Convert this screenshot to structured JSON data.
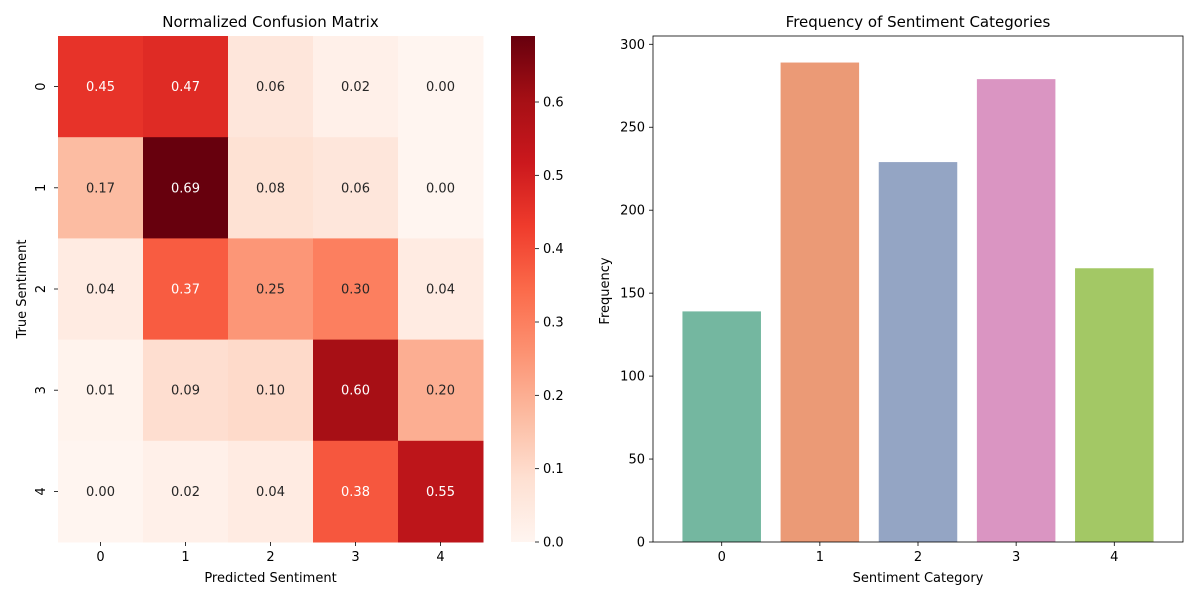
{
  "chart_data": [
    {
      "type": "heatmap",
      "title": "Normalized Confusion Matrix",
      "xlabel": "Predicted Sentiment",
      "ylabel": "True Sentiment",
      "x_categories": [
        "0",
        "1",
        "2",
        "3",
        "4"
      ],
      "y_categories": [
        "0",
        "1",
        "2",
        "3",
        "4"
      ],
      "values": [
        [
          0.45,
          0.47,
          0.06,
          0.02,
          0.0
        ],
        [
          0.17,
          0.69,
          0.08,
          0.06,
          0.0
        ],
        [
          0.04,
          0.37,
          0.25,
          0.3,
          0.04
        ],
        [
          0.01,
          0.09,
          0.1,
          0.6,
          0.2
        ],
        [
          0.0,
          0.02,
          0.04,
          0.38,
          0.55
        ]
      ],
      "colormap": "Reds",
      "colorbar": {
        "vmin": 0,
        "vmax": 0.69,
        "ticks": [
          "0.0",
          "0.1",
          "0.2",
          "0.3",
          "0.4",
          "0.5",
          "0.6"
        ]
      },
      "annotations": true
    },
    {
      "type": "bar",
      "title": "Frequency of Sentiment Categories",
      "xlabel": "Sentiment Category",
      "ylabel": "Frequency",
      "categories": [
        "0",
        "1",
        "2",
        "3",
        "4"
      ],
      "values": [
        139,
        289,
        229,
        279,
        165
      ],
      "colors": [
        "#74b7a0",
        "#eb9a76",
        "#94a5c4",
        "#da95c2",
        "#a3c865"
      ],
      "ylim": [
        0,
        305
      ],
      "yticks": [
        0,
        50,
        100,
        150,
        200,
        250,
        300
      ],
      "grid": false
    }
  ]
}
